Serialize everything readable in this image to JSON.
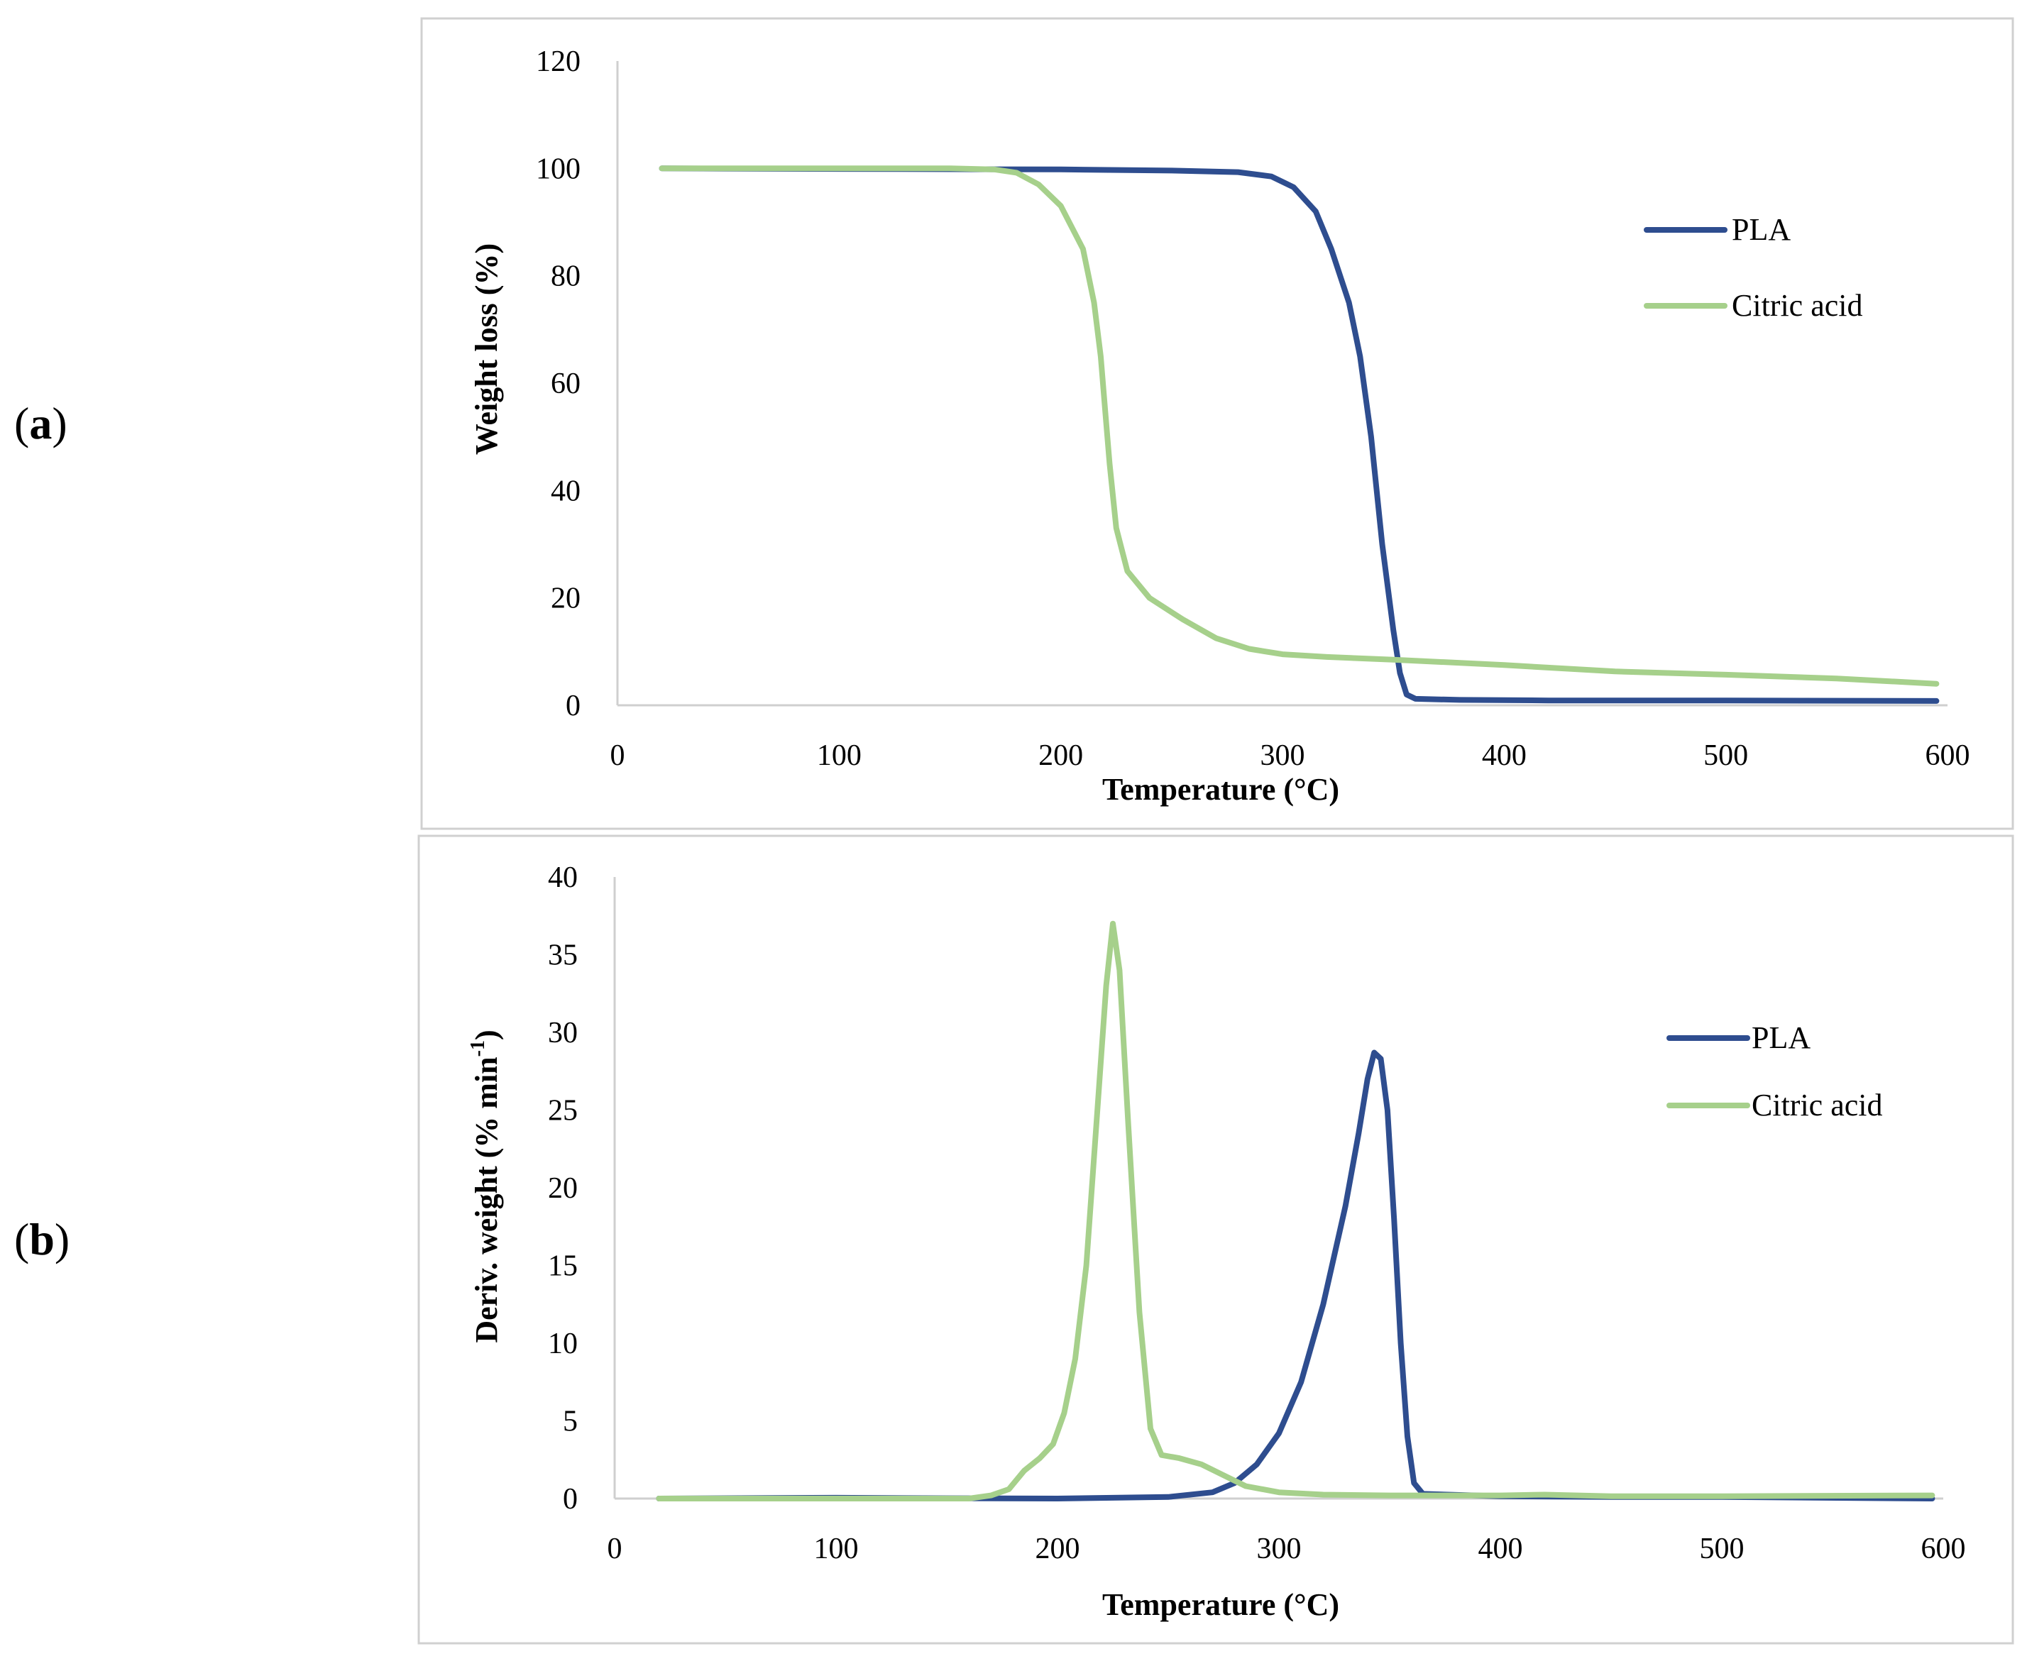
{
  "panels": {
    "a": {
      "open": "(",
      "letter": "a",
      "close": ")"
    },
    "b": {
      "open": "(",
      "letter": "b",
      "close": ")"
    }
  },
  "chart_data": [
    {
      "id": "a",
      "type": "line",
      "title": "",
      "xlabel": "Temperature (°C)",
      "ylabel": "Weight loss (%)",
      "xlim": [
        0,
        600
      ],
      "ylim": [
        0,
        120
      ],
      "xticks": [
        0,
        100,
        200,
        300,
        400,
        500,
        600
      ],
      "yticks": [
        0,
        20,
        40,
        60,
        80,
        100,
        120
      ],
      "legend_position": "top-right",
      "grid": false,
      "series": [
        {
          "name": "PLA",
          "color": "#2e4d8f",
          "points": [
            [
              20,
              100
            ],
            [
              100,
              99.9
            ],
            [
              200,
              99.8
            ],
            [
              250,
              99.6
            ],
            [
              280,
              99.3
            ],
            [
              295,
              98.5
            ],
            [
              305,
              96.5
            ],
            [
              315,
              92
            ],
            [
              322,
              85
            ],
            [
              330,
              75
            ],
            [
              335,
              65
            ],
            [
              340,
              50
            ],
            [
              345,
              30
            ],
            [
              350,
              14
            ],
            [
              353,
              6
            ],
            [
              356,
              2
            ],
            [
              360,
              1.2
            ],
            [
              380,
              1.0
            ],
            [
              420,
              0.9
            ],
            [
              500,
              0.9
            ],
            [
              595,
              0.8
            ]
          ]
        },
        {
          "name": "Citric acid",
          "color": "#a6d08b",
          "points": [
            [
              20,
              100
            ],
            [
              150,
              100
            ],
            [
              170,
              99.8
            ],
            [
              180,
              99.2
            ],
            [
              190,
              97
            ],
            [
              200,
              93
            ],
            [
              210,
              85
            ],
            [
              215,
              75
            ],
            [
              218,
              65
            ],
            [
              220,
              55
            ],
            [
              222,
              45
            ],
            [
              225,
              33
            ],
            [
              230,
              25
            ],
            [
              240,
              20
            ],
            [
              255,
              16
            ],
            [
              270,
              12.5
            ],
            [
              285,
              10.5
            ],
            [
              300,
              9.5
            ],
            [
              320,
              9
            ],
            [
              350,
              8.5
            ],
            [
              400,
              7.5
            ],
            [
              450,
              6.3
            ],
            [
              500,
              5.7
            ],
            [
              550,
              5
            ],
            [
              595,
              4
            ]
          ]
        }
      ]
    },
    {
      "id": "b",
      "type": "line",
      "title": "",
      "xlabel": "Temperature (°C)",
      "ylabel": "Deriv. weight  (% min",
      "ylabel_sup": "-1",
      "ylabel_close": ")",
      "xlim": [
        0,
        600
      ],
      "ylim": [
        0,
        40
      ],
      "xticks": [
        0,
        100,
        200,
        300,
        400,
        500,
        600
      ],
      "yticks": [
        0,
        5,
        10,
        15,
        20,
        25,
        30,
        35,
        40
      ],
      "legend_position": "top-right",
      "grid": false,
      "series": [
        {
          "name": "PLA",
          "color": "#2e4d8f",
          "points": [
            [
              20,
              0
            ],
            [
              100,
              0.05
            ],
            [
              150,
              0.02
            ],
            [
              200,
              0
            ],
            [
              250,
              0.1
            ],
            [
              270,
              0.4
            ],
            [
              280,
              1.0
            ],
            [
              290,
              2.2
            ],
            [
              300,
              4.2
            ],
            [
              310,
              7.5
            ],
            [
              320,
              12.5
            ],
            [
              330,
              18.8
            ],
            [
              336,
              23.5
            ],
            [
              340,
              27
            ],
            [
              343,
              28.7
            ],
            [
              346,
              28.3
            ],
            [
              349,
              25
            ],
            [
              352,
              18
            ],
            [
              355,
              10
            ],
            [
              358,
              4
            ],
            [
              361,
              1
            ],
            [
              365,
              0.3
            ],
            [
              400,
              0.15
            ],
            [
              450,
              0.1
            ],
            [
              500,
              0.1
            ],
            [
              595,
              0
            ]
          ]
        },
        {
          "name": "Citric acid",
          "color": "#a6d08b",
          "points": [
            [
              20,
              0
            ],
            [
              150,
              0
            ],
            [
              160,
              0
            ],
            [
              170,
              0.2
            ],
            [
              178,
              0.6
            ],
            [
              185,
              1.8
            ],
            [
              192,
              2.6
            ],
            [
              198,
              3.5
            ],
            [
              203,
              5.5
            ],
            [
              208,
              9
            ],
            [
              213,
              15
            ],
            [
              218,
              25
            ],
            [
              222,
              33
            ],
            [
              225,
              37
            ],
            [
              228,
              34
            ],
            [
              232,
              24
            ],
            [
              237,
              12
            ],
            [
              242,
              4.5
            ],
            [
              247,
              2.8
            ],
            [
              255,
              2.6
            ],
            [
              265,
              2.2
            ],
            [
              275,
              1.5
            ],
            [
              285,
              0.8
            ],
            [
              300,
              0.4
            ],
            [
              320,
              0.25
            ],
            [
              350,
              0.2
            ],
            [
              400,
              0.2
            ],
            [
              420,
              0.25
            ],
            [
              450,
              0.15
            ],
            [
              500,
              0.15
            ],
            [
              595,
              0.2
            ]
          ]
        }
      ]
    }
  ]
}
